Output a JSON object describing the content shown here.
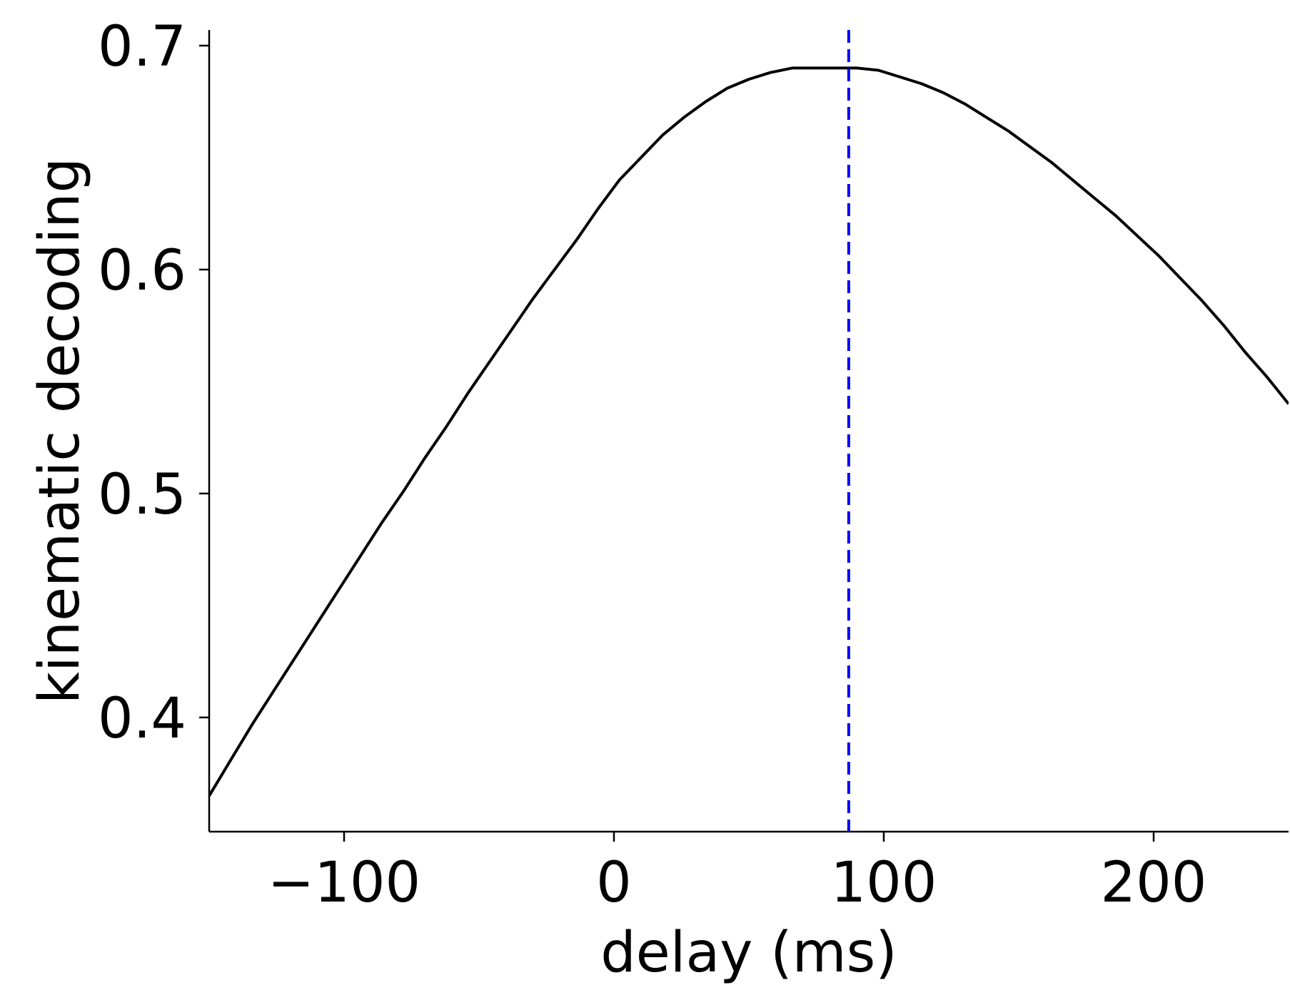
{
  "chart_data": {
    "type": "line",
    "title": "",
    "xlabel": "delay (ms)",
    "ylabel": "kinematic decoding",
    "xlim": [
      -150,
      250
    ],
    "ylim": [
      0.349,
      0.707
    ],
    "x_ticks": [
      -100,
      0,
      100,
      200
    ],
    "x_tick_labels": [
      "−100",
      "0",
      "100",
      "200"
    ],
    "y_ticks": [
      0.4,
      0.5,
      0.6,
      0.7
    ],
    "y_tick_labels": [
      "0.4",
      "0.5",
      "0.6",
      "0.7"
    ],
    "grid": false,
    "spines": [
      "left",
      "bottom"
    ],
    "series": [
      {
        "color": "#000000",
        "style": "solid",
        "x": [
          -150,
          -142,
          -134,
          -126,
          -118,
          -110,
          -102,
          -94,
          -86,
          -78,
          -70,
          -62,
          -54,
          -46,
          -38,
          -30,
          -22,
          -14,
          -6,
          2,
          10,
          18,
          26,
          34,
          42,
          50,
          58,
          66,
          74,
          82,
          90,
          98,
          106,
          114,
          122,
          130,
          138,
          146,
          154,
          162,
          170,
          178,
          186,
          194,
          202,
          210,
          218,
          226,
          234,
          242,
          250
        ],
        "y": [
          0.365,
          0.381,
          0.397,
          0.412,
          0.427,
          0.442,
          0.457,
          0.472,
          0.487,
          0.501,
          0.516,
          0.53,
          0.545,
          0.559,
          0.573,
          0.587,
          0.6,
          0.613,
          0.627,
          0.64,
          0.65,
          0.66,
          0.668,
          0.675,
          0.681,
          0.685,
          0.688,
          0.69,
          0.69,
          0.69,
          0.69,
          0.689,
          0.686,
          0.683,
          0.679,
          0.674,
          0.668,
          0.662,
          0.655,
          0.648,
          0.64,
          0.632,
          0.624,
          0.615,
          0.606,
          0.596,
          0.586,
          0.575,
          0.563,
          0.552,
          0.54
        ]
      }
    ],
    "reference_lines": [
      {
        "orientation": "vertical",
        "x": 87,
        "color": "#0000ff",
        "style": "dashed"
      }
    ]
  }
}
